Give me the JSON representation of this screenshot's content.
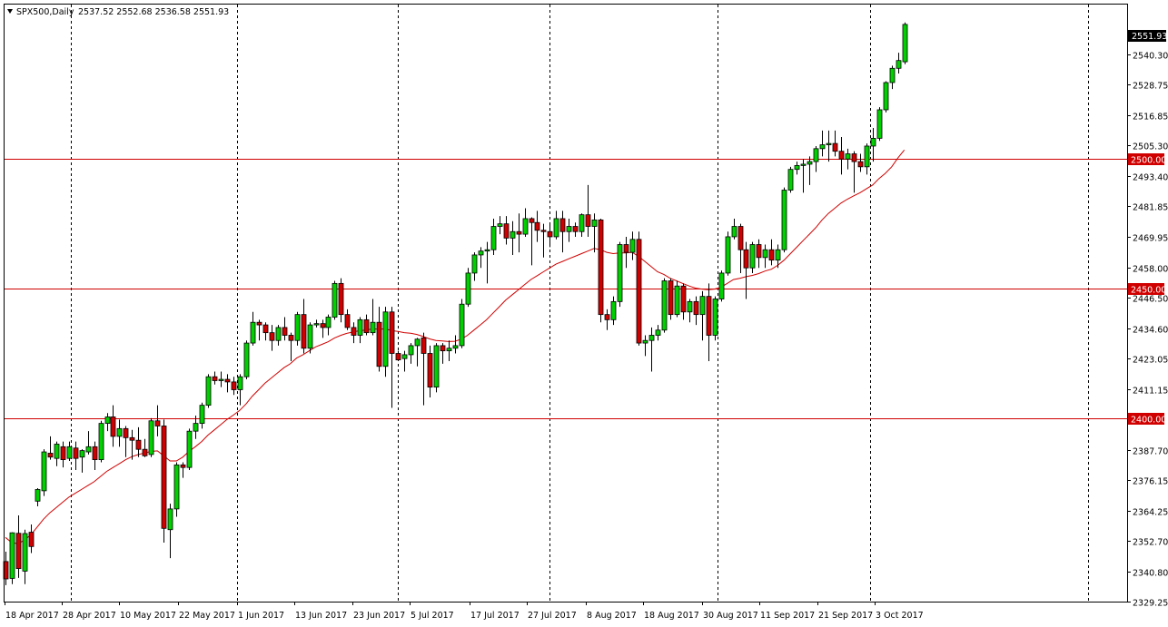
{
  "header": {
    "symbol": "SPX500,Daily",
    "ohlc": "2537.52 2552.68 2536.58 2551.93"
  },
  "current_price_label": "2551.93",
  "colors": {
    "background": "#ffffff",
    "bull_fill": "#00d000",
    "bear_fill": "#d00000",
    "candle_outline": "#000000",
    "moving_average": "#d00000",
    "level_line": "#d00000",
    "grid": "#000000",
    "current_price_tag": "#000000"
  },
  "chart_data": {
    "type": "candlestick",
    "instrument": "SPX500",
    "timeframe": "Daily",
    "y_ticks": [
      2551.93,
      2540.3,
      2528.75,
      2516.85,
      2505.3,
      2493.4,
      2481.85,
      2469.95,
      2458.0,
      2446.5,
      2434.6,
      2423.05,
      2411.15,
      2387.7,
      2376.15,
      2364.25,
      2352.7,
      2340.8,
      2329.25
    ],
    "y_range": [
      2329,
      2553
    ],
    "x_ticks": [
      "18 Apr 2017",
      "28 Apr 2017",
      "10 May 2017",
      "22 May 2017",
      "1 Jun 2017",
      "13 Jun 2017",
      "23 Jun 2017",
      "5 Jul 2017",
      "17 Jul 2017",
      "27 Jul 2017",
      "8 Aug 2017",
      "18 Aug 2017",
      "30 Aug 2017",
      "11 Sep 2017",
      "21 Sep 2017",
      "3 Oct 2017"
    ],
    "horizontal_levels": [
      {
        "value": 2500,
        "label": "2500.00"
      },
      {
        "value": 2450,
        "label": "2450.00"
      },
      {
        "value": 2400,
        "label": "2400.00"
      }
    ],
    "candles": [
      [
        2344.7,
        2348.5,
        2335.6,
        2338.0
      ],
      [
        2338.2,
        2356.0,
        2336.0,
        2355.8
      ],
      [
        2355.6,
        2362.5,
        2338.4,
        2342.0
      ],
      [
        2341.0,
        2357.0,
        2336.0,
        2355.5
      ],
      [
        2356.0,
        2359.0,
        2348.0,
        2350.5
      ],
      [
        2368.0,
        2373.0,
        2366.0,
        2372.5
      ],
      [
        2372.0,
        2388.0,
        2370.0,
        2387.0
      ],
      [
        2386.5,
        2393.0,
        2384.0,
        2385.0
      ],
      [
        2384.5,
        2391.0,
        2381.5,
        2390.0
      ],
      [
        2389.0,
        2391.0,
        2381.0,
        2384.0
      ],
      [
        2384.5,
        2391.0,
        2383.5,
        2389.0
      ],
      [
        2388.5,
        2391.0,
        2380.0,
        2384.5
      ],
      [
        2385.0,
        2388.0,
        2379.0,
        2387.5
      ],
      [
        2387.0,
        2395.0,
        2386.0,
        2389.0
      ],
      [
        2389.0,
        2391.0,
        2380.0,
        2384.0
      ],
      [
        2384.0,
        2399.0,
        2383.0,
        2398.0
      ],
      [
        2398.0,
        2402.0,
        2395.0,
        2400.5
      ],
      [
        2400.5,
        2405.0,
        2389.0,
        2393.0
      ],
      [
        2393.0,
        2399.5,
        2389.0,
        2396.0
      ],
      [
        2396.0,
        2397.0,
        2385.0,
        2392.5
      ],
      [
        2392.5,
        2395.5,
        2384.0,
        2391.5
      ],
      [
        2391.5,
        2396.5,
        2385.0,
        2388.0
      ],
      [
        2388.0,
        2392.0,
        2385.0,
        2385.5
      ],
      [
        2386.0,
        2400.0,
        2385.0,
        2399.0
      ],
      [
        2399.0,
        2405.0,
        2393.0,
        2397.0
      ],
      [
        2397.0,
        2399.5,
        2352.0,
        2357.5
      ],
      [
        2357.0,
        2367.0,
        2346.0,
        2365.0
      ],
      [
        2365.0,
        2383.0,
        2362.0,
        2382.0
      ],
      [
        2382.0,
        2383.0,
        2377.0,
        2381.0
      ],
      [
        2381.0,
        2396.0,
        2380.0,
        2395.0
      ],
      [
        2395.0,
        2401.0,
        2392.0,
        2398.0
      ],
      [
        2398.0,
        2406.0,
        2396.0,
        2405.0
      ],
      [
        2405.0,
        2417.0,
        2404.0,
        2416.0
      ],
      [
        2416.0,
        2418.0,
        2413.0,
        2414.5
      ],
      [
        2414.5,
        2418.0,
        2412.0,
        2415.0
      ],
      [
        2415.0,
        2417.0,
        2410.0,
        2414.0
      ],
      [
        2414.0,
        2416.0,
        2409.0,
        2411.0
      ],
      [
        2411.0,
        2417.0,
        2405.0,
        2416.0
      ],
      [
        2416.0,
        2430.0,
        2415.0,
        2429.0
      ],
      [
        2429.0,
        2441.0,
        2428.0,
        2437.0
      ],
      [
        2437.0,
        2438.0,
        2430.0,
        2436.0
      ],
      [
        2436.0,
        2437.0,
        2430.0,
        2433.0
      ],
      [
        2433.0,
        2436.0,
        2426.0,
        2430.0
      ],
      [
        2430.0,
        2436.0,
        2428.0,
        2435.0
      ],
      [
        2435.0,
        2439.0,
        2430.0,
        2432.0
      ],
      [
        2432.0,
        2433.0,
        2422.0,
        2430.0
      ],
      [
        2430.0,
        2441.0,
        2428.0,
        2440.0
      ],
      [
        2440.0,
        2446.0,
        2425.0,
        2427.0
      ],
      [
        2427.0,
        2437.0,
        2425.0,
        2436.0
      ],
      [
        2436.0,
        2438.0,
        2435.0,
        2436.5
      ],
      [
        2436.5,
        2438.0,
        2431.0,
        2435.0
      ],
      [
        2435.0,
        2440.0,
        2432.0,
        2439.0
      ],
      [
        2439.0,
        2453.0,
        2438.0,
        2452.0
      ],
      [
        2452.0,
        2454.0,
        2437.0,
        2440.0
      ],
      [
        2440.0,
        2442.0,
        2434.0,
        2435.0
      ],
      [
        2435.0,
        2437.0,
        2429.0,
        2432.0
      ],
      [
        2432.0,
        2439.0,
        2429.0,
        2438.0
      ],
      [
        2438.0,
        2440.0,
        2432.0,
        2433.0
      ],
      [
        2433.0,
        2446.0,
        2432.0,
        2437.0
      ],
      [
        2437.0,
        2443.0,
        2418.0,
        2420.0
      ],
      [
        2420.0,
        2443.0,
        2416.0,
        2441.0
      ],
      [
        2441.0,
        2443.0,
        2404.0,
        2425.0
      ],
      [
        2425.0,
        2426.0,
        2422.0,
        2422.5
      ],
      [
        2423.0,
        2426.0,
        2418.0,
        2424.5
      ],
      [
        2424.5,
        2429.0,
        2421.0,
        2428.0
      ],
      [
        2428.0,
        2431.0,
        2420.0,
        2430.5
      ],
      [
        2431.0,
        2433.0,
        2405.0,
        2425.0
      ],
      [
        2425.0,
        2428.0,
        2408.0,
        2412.0
      ],
      [
        2412.0,
        2429.0,
        2410.0,
        2428.0
      ],
      [
        2428.0,
        2429.0,
        2421.0,
        2426.0
      ],
      [
        2426.0,
        2430.0,
        2422.0,
        2427.0
      ],
      [
        2427.0,
        2432.0,
        2425.0,
        2428.0
      ],
      [
        2428.0,
        2446.0,
        2427.0,
        2444.0
      ],
      [
        2444.0,
        2458.0,
        2443.0,
        2456.0
      ],
      [
        2456.0,
        2464.0,
        2453.0,
        2463.0
      ],
      [
        2463.0,
        2466.0,
        2458.0,
        2464.5
      ],
      [
        2464.5,
        2468.0,
        2452.0,
        2465.0
      ],
      [
        2465.0,
        2477.0,
        2463.0,
        2474.0
      ],
      [
        2474.0,
        2478.0,
        2471.0,
        2475.0
      ],
      [
        2475.0,
        2478.0,
        2467.0,
        2469.5
      ],
      [
        2469.5,
        2476.0,
        2463.0,
        2472.0
      ],
      [
        2472.0,
        2479.0,
        2464.0,
        2471.0
      ],
      [
        2471.0,
        2481.0,
        2470.0,
        2477.0
      ],
      [
        2477.0,
        2477.5,
        2459.0,
        2475.5
      ],
      [
        2475.5,
        2480.0,
        2468.0,
        2472.5
      ],
      [
        2472.5,
        2475.0,
        2462.0,
        2472.0
      ],
      [
        2472.0,
        2475.5,
        2466.0,
        2470.0
      ],
      [
        2470.0,
        2480.0,
        2469.0,
        2477.0
      ],
      [
        2477.0,
        2480.0,
        2464.0,
        2472.0
      ],
      [
        2472.0,
        2477.0,
        2468.0,
        2474.0
      ],
      [
        2474.0,
        2475.5,
        2470.0,
        2472.0
      ],
      [
        2472.0,
        2479.0,
        2470.0,
        2478.5
      ],
      [
        2478.5,
        2490.0,
        2470.0,
        2474.0
      ],
      [
        2474.0,
        2479.0,
        2464.0,
        2476.5
      ],
      [
        2476.5,
        2477.0,
        2437.0,
        2440.0
      ],
      [
        2440.0,
        2442.0,
        2434.0,
        2438.0
      ],
      [
        2438.0,
        2447.0,
        2436.0,
        2445.0
      ],
      [
        2445.0,
        2468.0,
        2443.0,
        2467.0
      ],
      [
        2467.0,
        2470.0,
        2458.0,
        2464.0
      ],
      [
        2464.0,
        2472.0,
        2461.0,
        2469.0
      ],
      [
        2469.0,
        2472.0,
        2428.0,
        2429.0
      ],
      [
        2429.0,
        2432.0,
        2424.0,
        2430.0
      ],
      [
        2430.0,
        2435.0,
        2418.0,
        2432.0
      ],
      [
        2432.0,
        2436.0,
        2430.0,
        2434.0
      ],
      [
        2434.0,
        2454.0,
        2433.0,
        2453.0
      ],
      [
        2453.0,
        2454.0,
        2438.0,
        2440.0
      ],
      [
        2440.0,
        2453.0,
        2439.0,
        2451.0
      ],
      [
        2451.0,
        2452.0,
        2438.0,
        2441.0
      ],
      [
        2441.0,
        2446.0,
        2437.0,
        2445.0
      ],
      [
        2445.0,
        2447.0,
        2436.0,
        2440.0
      ],
      [
        2440.0,
        2449.0,
        2430.0,
        2447.0
      ],
      [
        2447.0,
        2452.0,
        2422.0,
        2432.0
      ],
      [
        2432.0,
        2447.0,
        2430.0,
        2446.0
      ],
      [
        2446.0,
        2457.0,
        2445.0,
        2456.0
      ],
      [
        2456.0,
        2472.0,
        2455.0,
        2470.0
      ],
      [
        2470.0,
        2477.0,
        2469.0,
        2474.0
      ],
      [
        2474.0,
        2475.0,
        2456.0,
        2465.0
      ],
      [
        2465.0,
        2468.0,
        2446.0,
        2458.0
      ],
      [
        2458.0,
        2468.0,
        2456.0,
        2467.0
      ],
      [
        2467.0,
        2469.0,
        2458.0,
        2462.0
      ],
      [
        2462.0,
        2467.0,
        2458.0,
        2465.0
      ],
      [
        2465.0,
        2469.0,
        2459.0,
        2461.0
      ],
      [
        2461.0,
        2467.0,
        2458.0,
        2465.0
      ],
      [
        2465.0,
        2489.0,
        2464.0,
        2488.0
      ],
      [
        2488.0,
        2497.0,
        2487.0,
        2496.0
      ],
      [
        2496.0,
        2499.0,
        2494.0,
        2497.5
      ],
      [
        2497.5,
        2500.0,
        2487.0,
        2498.0
      ],
      [
        2498.0,
        2501.0,
        2490.0,
        2499.0
      ],
      [
        2499.0,
        2505.0,
        2495.0,
        2504.0
      ],
      [
        2504.0,
        2511.0,
        2501.0,
        2505.5
      ],
      [
        2505.5,
        2511.0,
        2499.0,
        2506.0
      ],
      [
        2506.0,
        2511.0,
        2501.0,
        2503.0
      ],
      [
        2503.0,
        2508.5,
        2494.0,
        2500.0
      ],
      [
        2500.0,
        2504.0,
        2496.0,
        2502.0
      ],
      [
        2502.0,
        2503.0,
        2487.0,
        2499.0
      ],
      [
        2499.0,
        2502.0,
        2495.0,
        2497.0
      ],
      [
        2497.0,
        2506.0,
        2494.0,
        2505.0
      ],
      [
        2505.0,
        2512.0,
        2499.0,
        2508.0
      ],
      [
        2508.0,
        2520.0,
        2507.0,
        2519.0
      ],
      [
        2519.0,
        2530.0,
        2518.0,
        2529.5
      ],
      [
        2529.5,
        2536.0,
        2527.0,
        2535.0
      ],
      [
        2535.0,
        2541.0,
        2533.0,
        2538.0
      ],
      [
        2537.52,
        2552.68,
        2536.58,
        2551.93
      ]
    ],
    "moving_average": [
      2354.0,
      2352.0,
      2351.6,
      2353.0,
      2355.0,
      2358.0,
      2361.0,
      2363.5,
      2365.5,
      2367.5,
      2369.5,
      2371.0,
      2372.5,
      2374.0,
      2375.5,
      2377.5,
      2379.5,
      2381.0,
      2382.5,
      2384.0,
      2385.2,
      2386.0,
      2386.6,
      2387.2,
      2387.4,
      2385.5,
      2383.5,
      2383.5,
      2385.0,
      2387.2,
      2389.0,
      2391.0,
      2393.5,
      2395.5,
      2397.5,
      2399.5,
      2401.2,
      2403.0,
      2405.5,
      2408.5,
      2411.0,
      2413.5,
      2415.5,
      2417.5,
      2419.5,
      2421.0,
      2423.2,
      2424.5,
      2426.0,
      2427.5,
      2428.5,
      2429.5,
      2431.0,
      2432.0,
      2432.8,
      2433.3,
      2433.8,
      2434.0,
      2434.5,
      2434.3,
      2434.5,
      2433.8,
      2433.5,
      2433.0,
      2432.8,
      2432.3,
      2431.5,
      2430.6,
      2430.0,
      2429.8,
      2429.6,
      2429.7,
      2430.5,
      2432.0,
      2434.0,
      2436.0,
      2438.0,
      2440.5,
      2443.0,
      2445.5,
      2447.5,
      2449.5,
      2451.5,
      2453.5,
      2455.0,
      2456.5,
      2458.0,
      2459.5,
      2460.5,
      2461.5,
      2462.5,
      2463.5,
      2464.5,
      2465.5,
      2465.0,
      2464.0,
      2463.5,
      2463.8,
      2463.8,
      2464.0,
      2462.5,
      2460.5,
      2458.5,
      2456.5,
      2455.5,
      2454.0,
      2453.0,
      2452.0,
      2451.0,
      2450.2,
      2449.8,
      2449.6,
      2449.8,
      2450.5,
      2452.0,
      2453.5,
      2454.0,
      2454.6,
      2455.1,
      2455.8,
      2456.8,
      2457.5,
      2459.0,
      2461.0,
      2463.5,
      2466.0,
      2468.5,
      2471.0,
      2473.5,
      2476.5,
      2479.0,
      2481.0,
      2483.0,
      2484.5,
      2485.8,
      2487.0,
      2488.5,
      2490.0,
      2492.5,
      2494.5,
      2497.0,
      2500.5,
      2503.5
    ]
  }
}
